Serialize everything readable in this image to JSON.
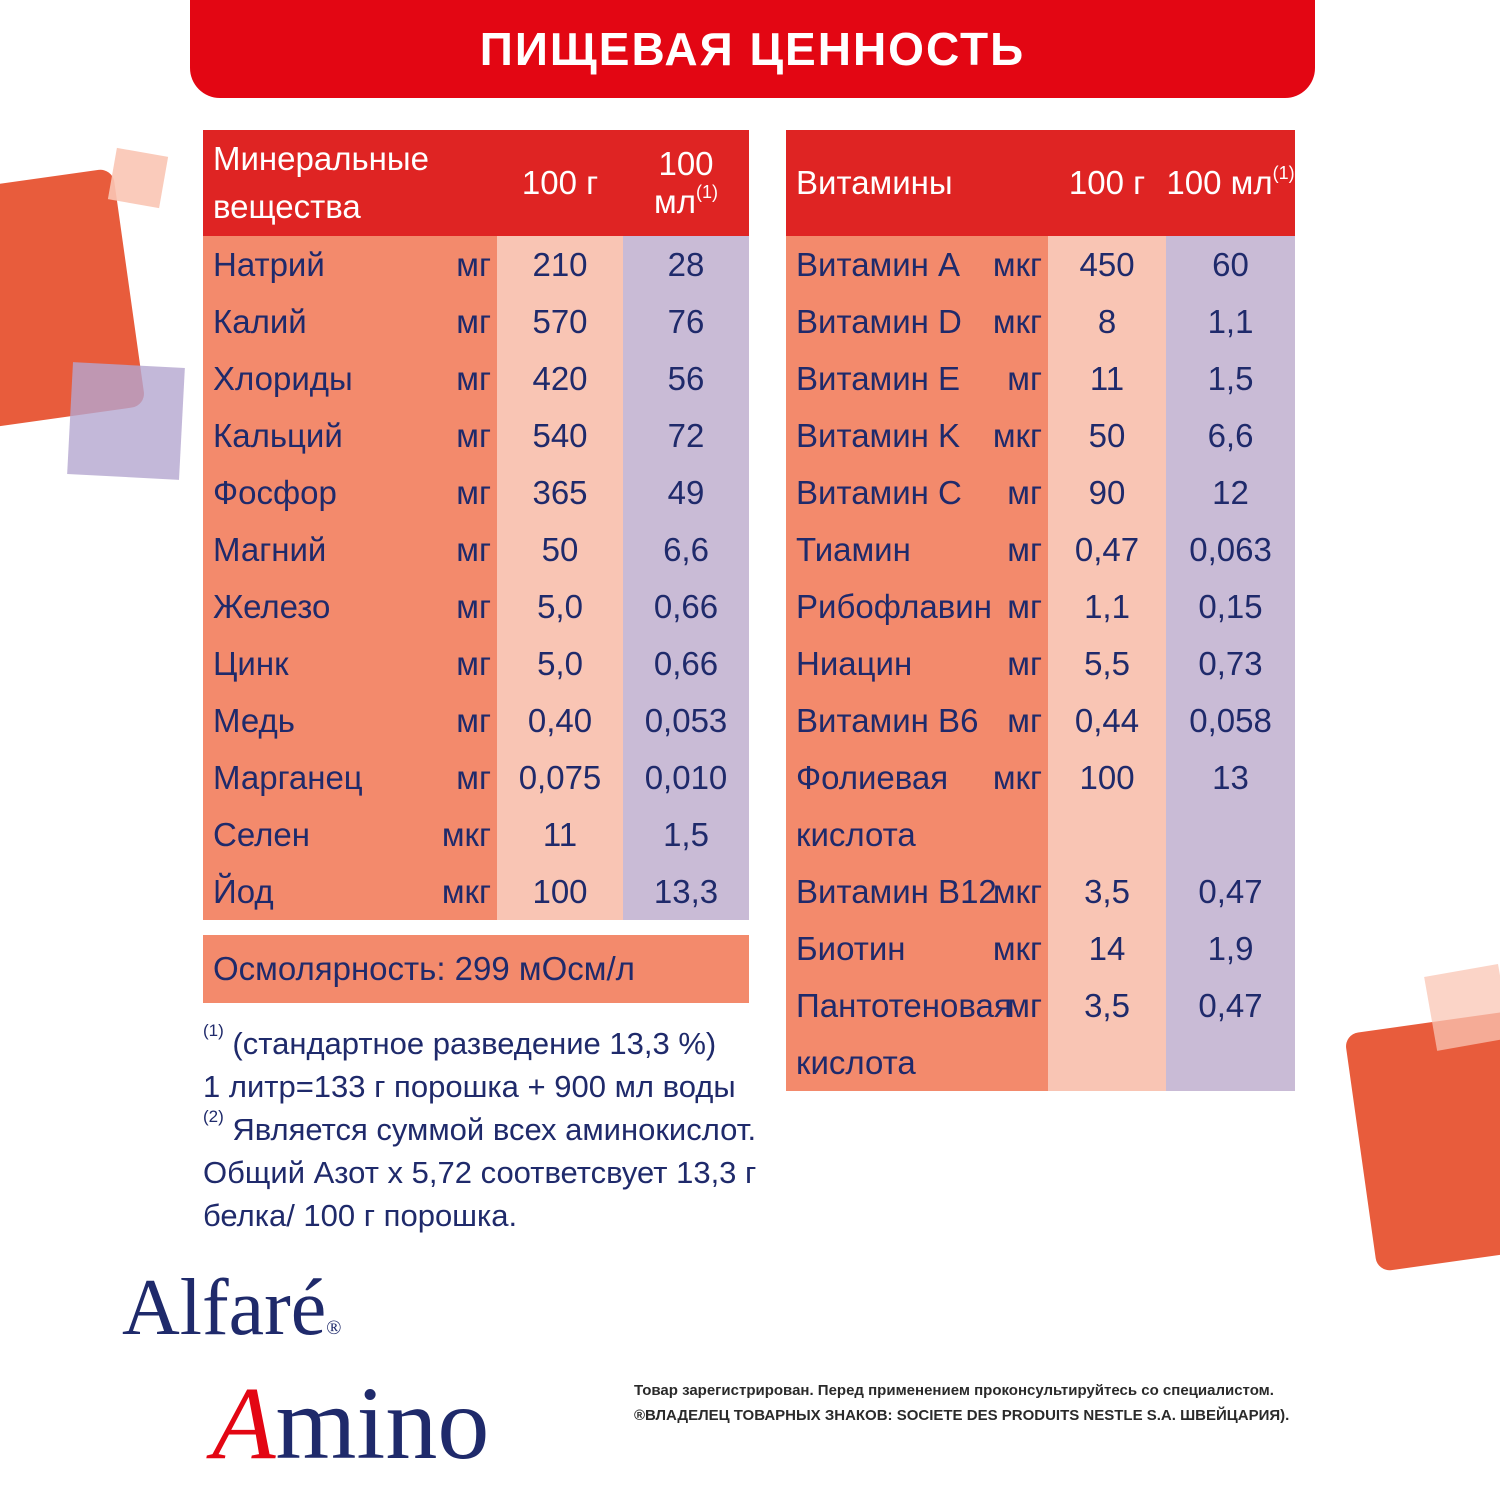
{
  "banner": {
    "title": "ПИЩЕВАЯ ЦЕННОСТЬ"
  },
  "minerals": {
    "header": {
      "name": "Минеральные вещества",
      "col_g": "100 г",
      "col_ml": "100 мл",
      "col_ml_sup": "(1)"
    },
    "rows": [
      {
        "name": "Натрий",
        "unit": "мг",
        "g": "210",
        "ml": "28"
      },
      {
        "name": "Калий",
        "unit": "мг",
        "g": "570",
        "ml": "76"
      },
      {
        "name": "Хлориды",
        "unit": "мг",
        "g": "420",
        "ml": "56"
      },
      {
        "name": "Кальций",
        "unit": "мг",
        "g": "540",
        "ml": "72"
      },
      {
        "name": "Фосфор",
        "unit": "мг",
        "g": "365",
        "ml": "49"
      },
      {
        "name": "Магний",
        "unit": "мг",
        "g": "50",
        "ml": "6,6"
      },
      {
        "name": "Железо",
        "unit": "мг",
        "g": "5,0",
        "ml": "0,66"
      },
      {
        "name": "Цинк",
        "unit": "мг",
        "g": "5,0",
        "ml": "0,66"
      },
      {
        "name": "Медь",
        "unit": "мг",
        "g": "0,40",
        "ml": "0,053"
      },
      {
        "name": "Марганец",
        "unit": "мг",
        "g": "0,075",
        "ml": "0,010"
      },
      {
        "name": "Селен",
        "unit": "мкг",
        "g": "11",
        "ml": "1,5"
      },
      {
        "name": "Йод",
        "unit": "мкг",
        "g": "100",
        "ml": "13,3"
      }
    ],
    "osmolarity": "Осмолярность: 299 мОсм/л"
  },
  "vitamins": {
    "header": {
      "name": "Витамины",
      "col_g": "100 г",
      "col_ml": "100 мл",
      "col_ml_sup": "(1)"
    },
    "rows": [
      {
        "name": "Витамин A",
        "unit": "мкг",
        "g": "450",
        "ml": "60"
      },
      {
        "name": "Витамин D",
        "unit": "мкг",
        "g": "8",
        "ml": "1,1"
      },
      {
        "name": "Витамин E",
        "unit": "мг",
        "g": "11",
        "ml": "1,5"
      },
      {
        "name": "Витамин K",
        "unit": "мкг",
        "g": "50",
        "ml": "6,6"
      },
      {
        "name": "Витамин C",
        "unit": "мг",
        "g": "90",
        "ml": "12"
      },
      {
        "name": "Тиамин",
        "unit": "мг",
        "g": "0,47",
        "ml": "0,063"
      },
      {
        "name": "Рибофлавин",
        "unit": "мг",
        "g": "1,1",
        "ml": "0,15"
      },
      {
        "name": "Ниацин",
        "unit": "мг",
        "g": "5,5",
        "ml": "0,73"
      },
      {
        "name": "Витамин B6",
        "unit": "мг",
        "g": "0,44",
        "ml": "0,058"
      },
      {
        "name": "Фолиевая",
        "unit": "мкг",
        "g": "100",
        "ml": "13"
      },
      {
        "name": "кислота",
        "unit": "",
        "g": "",
        "ml": ""
      },
      {
        "name": "Витамин B12",
        "unit": "мкг",
        "g": "3,5",
        "ml": "0,47"
      },
      {
        "name": "Биотин",
        "unit": "мкг",
        "g": "14",
        "ml": "1,9"
      },
      {
        "name": "Пантотеновая",
        "unit": "мг",
        "g": "3,5",
        "ml": "0,47"
      },
      {
        "name": "кислота",
        "unit": "",
        "g": "",
        "ml": ""
      }
    ]
  },
  "footnotes": {
    "note1_marker": "(1)",
    "note1_line1": "(стандартное разведение 13,3 %)",
    "note1_line2": "1 литр=133 г порошка + 900 мл воды",
    "note2_marker": "(2)",
    "note2_line1": "Является суммой всех аминокислот.",
    "note2_line2": "Общий Азот х 5,72 соответсвует 13,3 г",
    "note2_line3": "белка/ 100 г порошка."
  },
  "logo": {
    "brand": "Alfaré",
    "registered": "®",
    "product_initial": "A",
    "product_rest": "mino"
  },
  "legal": {
    "line1": "Товар зарегистрирован. Перед применением проконсультируйтесь со специалистом.",
    "line2": "®ВЛАДЕЛЕЦ ТОВАРНЫХ ЗНАКОВ:  SOCIETE DES PRODUITS NESTLE S.A.  ШВЕЙЦАРИЯ)."
  },
  "colors": {
    "brand_red": "#e30613",
    "header_red": "#df2423",
    "name_col": "#f38a6c",
    "g_col": "#f9c5b4",
    "ml_col": "#c9bbd6",
    "text_navy": "#1f2a6b"
  }
}
